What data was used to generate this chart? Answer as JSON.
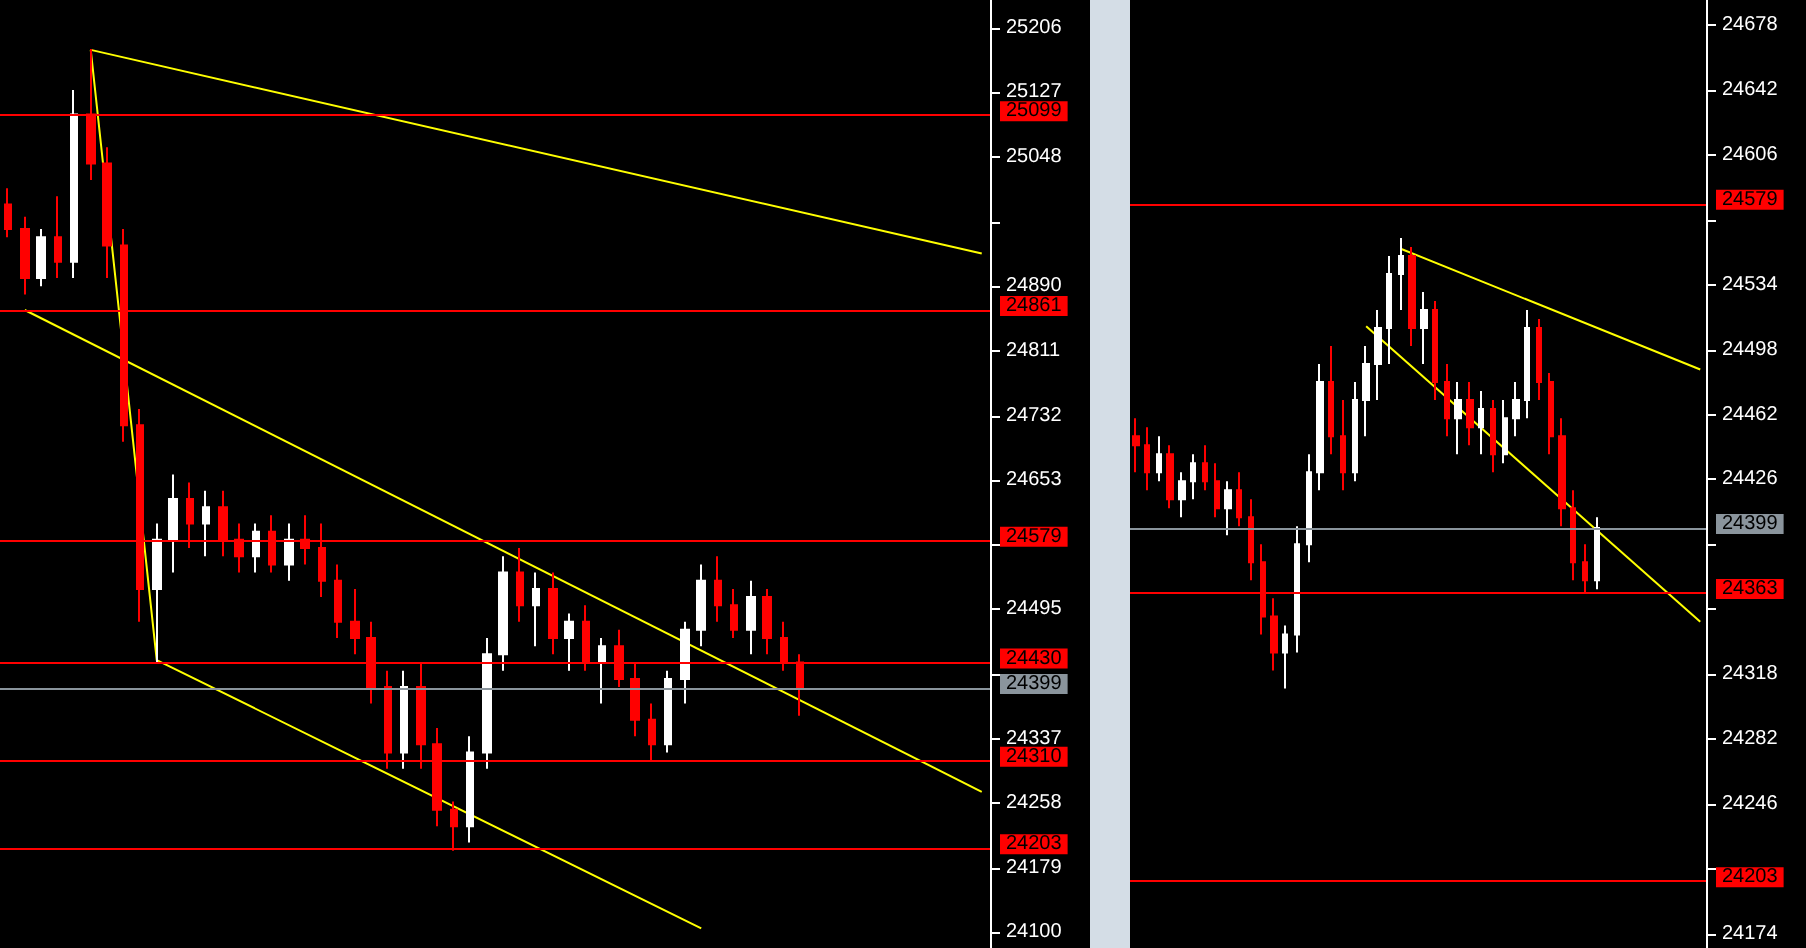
{
  "chart_data": [
    {
      "type": "candlestick",
      "tick_labels": "y",
      "categories": [
        null,
        null,
        null,
        null,
        null,
        null,
        null,
        null,
        null,
        null,
        null,
        null,
        null,
        null,
        null,
        null,
        null,
        null,
        null,
        null,
        null,
        null,
        null,
        null,
        null,
        null,
        null,
        null,
        null,
        null,
        null,
        null,
        null,
        null,
        null,
        null,
        null,
        null,
        null,
        null,
        null,
        null,
        null,
        null,
        null,
        null,
        null,
        null,
        null,
        null,
        null,
        null,
        null,
        null,
        null,
        null,
        null,
        null,
        null,
        null
      ],
      "ohlc": [
        [
          24990,
          25010,
          24950,
          24960
        ],
        [
          24960,
          24975,
          24880,
          24900
        ],
        [
          24900,
          24960,
          24890,
          24950
        ],
        [
          24950,
          25000,
          24900,
          24920
        ],
        [
          24920,
          25130,
          24900,
          25100
        ],
        [
          25100,
          25180,
          25020,
          25040
        ],
        [
          25040,
          25060,
          24900,
          24940
        ],
        [
          24940,
          24960,
          24700,
          24720
        ],
        [
          24720,
          24740,
          24480,
          24520
        ],
        [
          24520,
          24600,
          24430,
          24580
        ],
        [
          24580,
          24660,
          24540,
          24630
        ],
        [
          24630,
          24650,
          24570,
          24600
        ],
        [
          24600,
          24640,
          24560,
          24620
        ],
        [
          24620,
          24640,
          24560,
          24580
        ],
        [
          24580,
          24600,
          24540,
          24560
        ],
        [
          24560,
          24600,
          24540,
          24590
        ],
        [
          24590,
          24610,
          24540,
          24550
        ],
        [
          24550,
          24600,
          24530,
          24580
        ],
        [
          24580,
          24610,
          24550,
          24570
        ],
        [
          24570,
          24600,
          24510,
          24530
        ],
        [
          24530,
          24550,
          24460,
          24480
        ],
        [
          24480,
          24520,
          24440,
          24460
        ],
        [
          24460,
          24480,
          24380,
          24400
        ],
        [
          24400,
          24420,
          24300,
          24320
        ],
        [
          24320,
          24420,
          24300,
          24400
        ],
        [
          24400,
          24430,
          24300,
          24330
        ],
        [
          24330,
          24350,
          24230,
          24250
        ],
        [
          24250,
          24260,
          24200,
          24230
        ],
        [
          24230,
          24340,
          24210,
          24320
        ],
        [
          24320,
          24460,
          24300,
          24440
        ],
        [
          24440,
          24560,
          24420,
          24540
        ],
        [
          24540,
          24570,
          24480,
          24500
        ],
        [
          24500,
          24540,
          24450,
          24520
        ],
        [
          24520,
          24540,
          24440,
          24460
        ],
        [
          24460,
          24490,
          24420,
          24480
        ],
        [
          24480,
          24500,
          24420,
          24430
        ],
        [
          24430,
          24460,
          24380,
          24450
        ],
        [
          24450,
          24470,
          24400,
          24410
        ],
        [
          24410,
          24430,
          24340,
          24360
        ],
        [
          24360,
          24380,
          24310,
          24330
        ],
        [
          24330,
          24420,
          24320,
          24410
        ],
        [
          24410,
          24480,
          24380,
          24470
        ],
        [
          24470,
          24550,
          24450,
          24530
        ],
        [
          24530,
          24560,
          24480,
          24500
        ],
        [
          24500,
          24520,
          24460,
          24470
        ],
        [
          24470,
          24530,
          24440,
          24510
        ],
        [
          24510,
          24520,
          24440,
          24460
        ],
        [
          24460,
          24480,
          24420,
          24430
        ],
        [
          24430,
          24440,
          24365,
          24399
        ],
        null,
        null,
        null,
        null,
        null,
        null,
        null,
        null,
        null,
        null,
        null
      ],
      "ylim": [
        24081,
        25240
      ],
      "yticks": [
        25206,
        25127,
        25048,
        {
          "value": 24969,
          "label": null
        },
        24890,
        24811,
        24732,
        24653,
        {
          "value": 24574,
          "label": null
        },
        24495,
        {
          "value": 24416,
          "label": null
        },
        24337,
        24258,
        24179,
        24100
      ],
      "series": [
        {
          "type": "line",
          "color": "#ffff00",
          "values": [
            null,
            null,
            null,
            null,
            null,
            25179,
            null,
            null,
            null,
            24433,
            null,
            null,
            null,
            null,
            null,
            null,
            null,
            null,
            null,
            null,
            null,
            null,
            null,
            null,
            null,
            null,
            null,
            null,
            null,
            null,
            null,
            null,
            null,
            null,
            null,
            null,
            null,
            null,
            null,
            null,
            null,
            null,
            24105,
            null,
            null,
            null,
            null,
            null,
            null,
            null,
            null,
            null,
            null,
            null,
            null,
            null,
            null,
            null,
            null,
            null
          ]
        },
        {
          "type": "line",
          "color": "#ffff00",
          "values": [
            null,
            null,
            null,
            null,
            null,
            25179,
            null,
            null,
            null,
            null,
            null,
            null,
            null,
            null,
            null,
            null,
            null,
            null,
            null,
            null,
            null,
            null,
            null,
            null,
            null,
            null,
            null,
            null,
            null,
            null,
            null,
            null,
            null,
            null,
            null,
            null,
            null,
            null,
            null,
            null,
            null,
            null,
            null,
            null,
            null,
            null,
            null,
            null,
            null,
            null,
            null,
            null,
            null,
            null,
            null,
            null,
            null,
            null,
            null,
            24930
          ]
        },
        {
          "type": "line",
          "color": "#ffff00",
          "values": [
            null,
            24861,
            null,
            null,
            null,
            null,
            null,
            null,
            null,
            null,
            null,
            null,
            null,
            null,
            null,
            null,
            null,
            null,
            null,
            null,
            null,
            null,
            null,
            null,
            null,
            null,
            null,
            null,
            null,
            null,
            null,
            null,
            null,
            null,
            null,
            null,
            null,
            null,
            null,
            null,
            null,
            null,
            null,
            null,
            null,
            null,
            null,
            null,
            null,
            null,
            null,
            null,
            null,
            null,
            null,
            null,
            null,
            null,
            null,
            24272
          ]
        }
      ],
      "ref_lines": [
        {
          "axis": "y",
          "value": 25099,
          "label": "25099",
          "color": "#ff0000"
        },
        {
          "axis": "y",
          "value": 24861,
          "label": "24861",
          "color": "#ff0000"
        },
        {
          "axis": "y",
          "value": 24579,
          "label": "24579",
          "color": "#ff0000"
        },
        {
          "axis": "y",
          "value": 24430,
          "label": "24430",
          "color": "#ff0000"
        },
        {
          "axis": "y",
          "value": 24399,
          "label": "24399",
          "color": "#8a949c"
        },
        {
          "axis": "y",
          "value": 24310,
          "label": "24310",
          "color": "#ff0000"
        },
        {
          "axis": "y",
          "value": 24203,
          "label": "24203",
          "color": "#ff0000"
        }
      ]
    },
    {
      "type": "candlestick",
      "tick_labels": "y",
      "categories": [
        null,
        null,
        null,
        null,
        null,
        null,
        null,
        null,
        null,
        null,
        null,
        null,
        null,
        null,
        null,
        null,
        null,
        null,
        null,
        null,
        null,
        null,
        null,
        null,
        null,
        null,
        null,
        null,
        null,
        null,
        null,
        null,
        null,
        null,
        null,
        null,
        null,
        null,
        null,
        null,
        null,
        null,
        null,
        null,
        null,
        null,
        null,
        null,
        null,
        null
      ],
      "ohlc": [
        [
          24450,
          24460,
          24430,
          24445
        ],
        [
          24445,
          24455,
          24420,
          24430
        ],
        [
          24430,
          24450,
          24425,
          24440
        ],
        [
          24440,
          24445,
          24410,
          24415
        ],
        [
          24415,
          24430,
          24405,
          24425
        ],
        [
          24425,
          24440,
          24415,
          24435
        ],
        [
          24435,
          24445,
          24420,
          24425
        ],
        [
          24425,
          24435,
          24405,
          24410
        ],
        [
          24410,
          24425,
          24395,
          24420
        ],
        [
          24420,
          24430,
          24400,
          24405
        ],
        [
          24405,
          24415,
          24370,
          24380
        ],
        [
          24380,
          24390,
          24340,
          24350
        ],
        [
          24350,
          24360,
          24320,
          24330
        ],
        [
          24330,
          24345,
          24310,
          24340
        ],
        [
          24340,
          24400,
          24330,
          24390
        ],
        [
          24390,
          24440,
          24380,
          24430
        ],
        [
          24430,
          24490,
          24420,
          24480
        ],
        [
          24480,
          24500,
          24440,
          24450
        ],
        [
          24450,
          24470,
          24420,
          24430
        ],
        [
          24430,
          24480,
          24425,
          24470
        ],
        [
          24470,
          24500,
          24450,
          24490
        ],
        [
          24490,
          24520,
          24470,
          24510
        ],
        [
          24510,
          24550,
          24490,
          24540
        ],
        [
          24540,
          24560,
          24520,
          24550
        ],
        [
          24550,
          24555,
          24500,
          24510
        ],
        [
          24510,
          24530,
          24490,
          24520
        ],
        [
          24520,
          24525,
          24470,
          24480
        ],
        [
          24480,
          24490,
          24450,
          24460
        ],
        [
          24460,
          24480,
          24440,
          24470
        ],
        [
          24470,
          24480,
          24445,
          24455
        ],
        [
          24455,
          24475,
          24440,
          24465
        ],
        [
          24465,
          24470,
          24430,
          24440
        ],
        [
          24440,
          24470,
          24435,
          24460
        ],
        [
          24460,
          24480,
          24450,
          24470
        ],
        [
          24470,
          24520,
          24460,
          24510
        ],
        [
          24510,
          24515,
          24470,
          24480
        ],
        [
          24480,
          24485,
          24440,
          24450
        ],
        [
          24450,
          24460,
          24400,
          24410
        ],
        [
          24410,
          24420,
          24370,
          24380
        ],
        [
          24380,
          24390,
          24363,
          24370
        ],
        [
          24370,
          24405,
          24365,
          24399
        ],
        null,
        null,
        null,
        null,
        null,
        null,
        null,
        null,
        null
      ],
      "ylim": [
        24166,
        24692
      ],
      "yticks": [
        24678,
        24642,
        24606,
        {
          "value": 24570,
          "label": null
        },
        24534,
        24498,
        24462,
        24426,
        {
          "value": 24390,
          "label": null
        },
        {
          "value": 24354,
          "label": null
        },
        24318,
        24282,
        24246,
        {
          "value": 24210,
          "label": null
        },
        24174
      ],
      "series": [
        {
          "type": "line",
          "color": "#ffff00",
          "values": [
            null,
            null,
            null,
            null,
            null,
            null,
            null,
            null,
            null,
            null,
            null,
            null,
            null,
            null,
            null,
            null,
            null,
            null,
            null,
            null,
            null,
            null,
            null,
            24554,
            null,
            null,
            null,
            null,
            null,
            null,
            null,
            null,
            null,
            null,
            null,
            null,
            null,
            null,
            null,
            null,
            null,
            null,
            null,
            null,
            null,
            null,
            null,
            null,
            null,
            24487
          ]
        },
        {
          "type": "line",
          "color": "#ffff00",
          "values": [
            null,
            null,
            null,
            null,
            null,
            null,
            null,
            null,
            null,
            null,
            null,
            null,
            null,
            null,
            null,
            null,
            null,
            null,
            null,
            null,
            24511,
            null,
            null,
            null,
            null,
            null,
            null,
            null,
            null,
            null,
            null,
            null,
            null,
            null,
            null,
            null,
            null,
            null,
            null,
            null,
            null,
            null,
            null,
            null,
            null,
            null,
            null,
            null,
            null,
            24347
          ]
        }
      ],
      "ref_lines": [
        {
          "axis": "y",
          "value": 24579,
          "label": "24579",
          "color": "#ff0000"
        },
        {
          "axis": "y",
          "value": 24399,
          "label": "24399",
          "color": "#8a949c"
        },
        {
          "axis": "y",
          "value": 24363,
          "label": "24363",
          "color": "#ff0000"
        },
        {
          "axis": "y",
          "value": 24203,
          "label": "24203",
          "color": "#ff0000"
        }
      ]
    }
  ]
}
